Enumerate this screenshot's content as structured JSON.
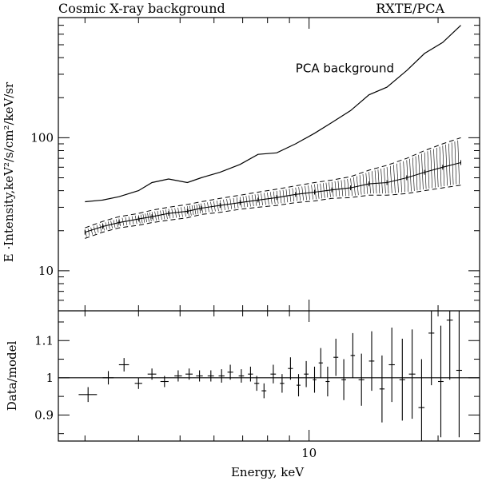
{
  "title_left": "Cosmic X-ray background",
  "title_right": "RXTE/PCA",
  "chart_data": [
    {
      "type": "line",
      "xlabel": "",
      "ylabel": "E ·Intensity,keV²/s/cm²/keV/sr",
      "xscale": "log",
      "yscale": "log",
      "xlim": [
        2.6,
        25
      ],
      "ylim": [
        5,
        800
      ],
      "grid": false,
      "x_tick_labels": [
        {
          "value": 10,
          "label": "10"
        }
      ],
      "y_tick_labels": [
        {
          "value": 10,
          "label": "10"
        },
        {
          "value": 100,
          "label": "100"
        }
      ],
      "annotations": [
        {
          "text": "PCA background",
          "x": 9.3,
          "y": 310
        }
      ],
      "series": [
        {
          "style": "solid-line",
          "x": [
            3.0,
            3.3,
            3.6,
            4.0,
            4.3,
            4.7,
            5.2,
            5.6,
            6.2,
            6.9,
            7.6,
            8.4,
            9.3,
            10.3,
            11.3,
            12.5,
            13.8,
            15.2,
            16.9,
            18.6,
            20.5,
            22.6
          ],
          "y": [
            33,
            34,
            36,
            40,
            46,
            49,
            46,
            50,
            55,
            63,
            75,
            77,
            90,
            108,
            130,
            160,
            210,
            240,
            320,
            430,
            520,
            700
          ]
        },
        {
          "style": "data-band",
          "x": [
            3.0,
            3.3,
            3.6,
            4.0,
            4.3,
            4.7,
            5.2,
            5.6,
            6.2,
            6.9,
            7.6,
            8.4,
            9.3,
            10.3,
            11.3,
            12.5,
            13.8,
            15.2,
            16.9,
            18.6,
            20.5,
            22.6
          ],
          "y": [
            19.5,
            21.5,
            23,
            24.5,
            25.5,
            27,
            28,
            29.5,
            31,
            32.5,
            34,
            35.5,
            37.5,
            39,
            40.5,
            42,
            45,
            46,
            50,
            55,
            60,
            65
          ],
          "upper": [
            21,
            23.5,
            25.5,
            27,
            28.5,
            30,
            31.5,
            33,
            35,
            37,
            39,
            41,
            43.5,
            46,
            48,
            51,
            57,
            62,
            70,
            80,
            90,
            100
          ],
          "lower": [
            17.5,
            19.5,
            21,
            22,
            23,
            24,
            25,
            26.5,
            27.5,
            29,
            30,
            31,
            32.5,
            33.5,
            35,
            35.5,
            37,
            37,
            38,
            40,
            42,
            44
          ]
        }
      ]
    },
    {
      "type": "scatter",
      "xlabel": "Energy, keV",
      "ylabel": "Data/model",
      "xscale": "log",
      "xlim": [
        2.6,
        25
      ],
      "ylim": [
        0.83,
        1.18
      ],
      "grid": false,
      "reference_line": 1,
      "x_tick_labels": [
        {
          "value": 10,
          "label": "10"
        }
      ],
      "y_tick_labels": [
        {
          "value": 0.9,
          "label": "0.9"
        },
        {
          "value": 1,
          "label": "1"
        },
        {
          "value": 1.1,
          "label": "1.1"
        }
      ],
      "points": [
        {
          "x": 3.05,
          "y": 0.955,
          "xerr": 0.15,
          "yerr": 0.02
        },
        {
          "x": 3.4,
          "y": 1.0,
          "xerr": 0.1,
          "yerr": 0.018
        },
        {
          "x": 3.7,
          "y": 1.035,
          "xerr": 0.1,
          "yerr": 0.018
        },
        {
          "x": 4.0,
          "y": 0.985,
          "xerr": 0.08,
          "yerr": 0.015
        },
        {
          "x": 4.3,
          "y": 1.01,
          "xerr": 0.1,
          "yerr": 0.015
        },
        {
          "x": 4.6,
          "y": 0.99,
          "xerr": 0.1,
          "yerr": 0.015
        },
        {
          "x": 4.95,
          "y": 1.005,
          "xerr": 0.1,
          "yerr": 0.015
        },
        {
          "x": 5.25,
          "y": 1.01,
          "xerr": 0.1,
          "yerr": 0.015
        },
        {
          "x": 5.55,
          "y": 1.005,
          "xerr": 0.1,
          "yerr": 0.015
        },
        {
          "x": 5.9,
          "y": 1.005,
          "xerr": 0.1,
          "yerr": 0.015
        },
        {
          "x": 6.25,
          "y": 1.005,
          "xerr": 0.1,
          "yerr": 0.018
        },
        {
          "x": 6.55,
          "y": 1.015,
          "xerr": 0.1,
          "yerr": 0.02
        },
        {
          "x": 6.95,
          "y": 1.005,
          "xerr": 0.1,
          "yerr": 0.018
        },
        {
          "x": 7.3,
          "y": 1.01,
          "xerr": 0.1,
          "yerr": 0.02
        },
        {
          "x": 7.55,
          "y": 0.985,
          "xerr": 0.1,
          "yerr": 0.02
        },
        {
          "x": 7.85,
          "y": 0.965,
          "xerr": 0.1,
          "yerr": 0.02
        },
        {
          "x": 8.25,
          "y": 1.01,
          "xerr": 0.12,
          "yerr": 0.025
        },
        {
          "x": 8.65,
          "y": 0.985,
          "xerr": 0.1,
          "yerr": 0.025
        },
        {
          "x": 9.05,
          "y": 1.025,
          "xerr": 0.12,
          "yerr": 0.03
        },
        {
          "x": 9.45,
          "y": 0.98,
          "xerr": 0.1,
          "yerr": 0.03
        },
        {
          "x": 9.85,
          "y": 1.01,
          "xerr": 0.12,
          "yerr": 0.035
        },
        {
          "x": 10.3,
          "y": 0.995,
          "xerr": 0.1,
          "yerr": 0.035
        },
        {
          "x": 10.65,
          "y": 1.04,
          "xerr": 0.12,
          "yerr": 0.04
        },
        {
          "x": 11.05,
          "y": 0.99,
          "xerr": 0.12,
          "yerr": 0.04
        },
        {
          "x": 11.55,
          "y": 1.055,
          "xerr": 0.15,
          "yerr": 0.05
        },
        {
          "x": 12.05,
          "y": 0.995,
          "xerr": 0.15,
          "yerr": 0.055
        },
        {
          "x": 12.65,
          "y": 1.06,
          "xerr": 0.15,
          "yerr": 0.06
        },
        {
          "x": 13.25,
          "y": 0.995,
          "xerr": 0.2,
          "yerr": 0.07
        },
        {
          "x": 14.0,
          "y": 1.045,
          "xerr": 0.2,
          "yerr": 0.08
        },
        {
          "x": 14.8,
          "y": 0.97,
          "xerr": 0.2,
          "yerr": 0.09
        },
        {
          "x": 15.6,
          "y": 1.035,
          "xerr": 0.25,
          "yerr": 0.1
        },
        {
          "x": 16.5,
          "y": 0.995,
          "xerr": 0.25,
          "yerr": 0.11
        },
        {
          "x": 17.4,
          "y": 1.01,
          "xerr": 0.3,
          "yerr": 0.12
        },
        {
          "x": 18.3,
          "y": 0.92,
          "xerr": 0.3,
          "yerr": 0.13
        },
        {
          "x": 19.3,
          "y": 1.12,
          "xerr": 0.3,
          "yerr": 0.14
        },
        {
          "x": 20.3,
          "y": 0.99,
          "xerr": 0.3,
          "yerr": 0.15
        },
        {
          "x": 21.3,
          "y": 1.155,
          "xerr": 0.35,
          "yerr": 0.16
        },
        {
          "x": 22.4,
          "y": 1.02,
          "xerr": 0.35,
          "yerr": 0.18
        }
      ]
    }
  ]
}
